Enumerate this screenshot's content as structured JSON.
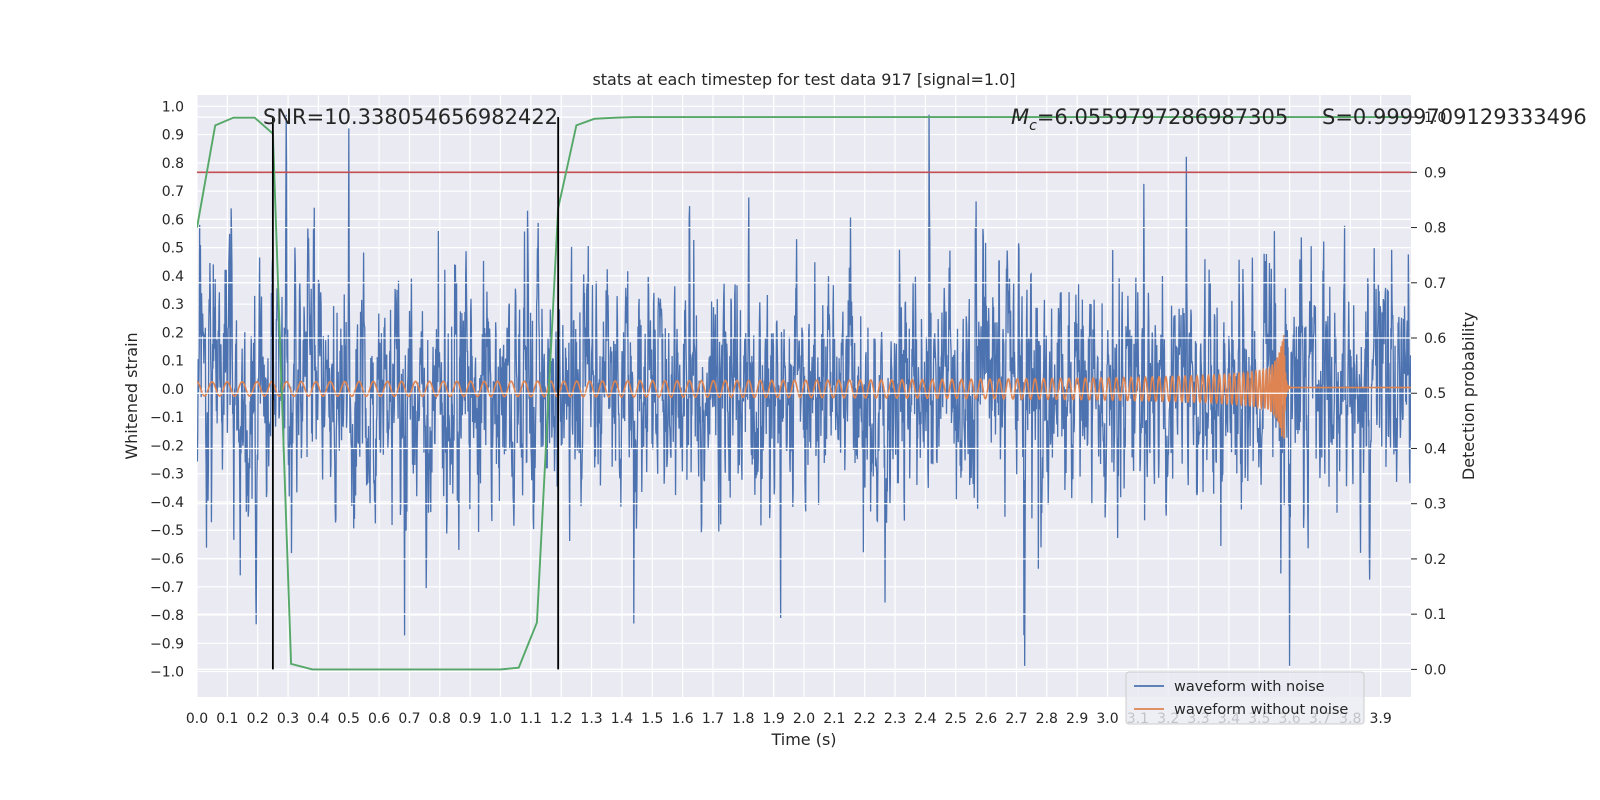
{
  "chart_data": {
    "type": "line",
    "title": "stats at each timestep for test data 917 [signal=1.0]",
    "xlabel": "Time (s)",
    "ylabel_left": "Whitened strain",
    "ylabel_right": "Detection probability",
    "xlim": [
      0.0,
      4.0
    ],
    "ylim_left": [
      -1.09,
      1.04
    ],
    "ylim_right": [
      -0.05,
      1.04
    ],
    "x_ticks": [
      "0.0",
      "0.1",
      "0.2",
      "0.3",
      "0.4",
      "0.5",
      "0.6",
      "0.7",
      "0.8",
      "0.9",
      "1.0",
      "1.1",
      "1.2",
      "1.3",
      "1.4",
      "1.5",
      "1.6",
      "1.7",
      "1.8",
      "1.9",
      "2.0",
      "2.1",
      "2.2",
      "2.3",
      "2.4",
      "2.5",
      "2.6",
      "2.7",
      "2.8",
      "2.9",
      "3.0",
      "3.1",
      "3.2",
      "3.3",
      "3.4",
      "3.5",
      "3.6",
      "3.7",
      "3.8",
      "3.9"
    ],
    "y_ticks_left": [
      "1.0",
      "0.9",
      "0.8",
      "0.7",
      "0.6",
      "0.5",
      "0.4",
      "0.3",
      "0.2",
      "0.1",
      "0.0",
      "−0.1",
      "−0.2",
      "−0.3",
      "−0.4",
      "−0.5",
      "−0.6",
      "−0.7",
      "−0.8",
      "−0.9",
      "−1.0"
    ],
    "y_ticks_right": [
      "1.0",
      "0.9",
      "0.8",
      "0.7",
      "0.6",
      "0.5",
      "0.4",
      "0.3",
      "0.2",
      "0.1",
      "0.0"
    ],
    "grid": true,
    "legend_placement": "lower-right",
    "annotations": {
      "snr": "SNR=10.338054656982422",
      "mc_symbol": "M",
      "mc_subscript": "c",
      "mc_value": "=6.0559797286987305",
      "s": "S=0.9999709129333496"
    },
    "threshold_probability": 0.9,
    "vertical_markers_x": [
      0.25,
      1.19
    ],
    "series": [
      {
        "name": "waveform with noise",
        "axis": "left",
        "color": "#4c72b0",
        "kind": "noise",
        "amplitude": 0.2,
        "peak_max": 0.97,
        "peak_min": -0.98,
        "approx_points": 4096
      },
      {
        "name": "waveform without noise",
        "axis": "left",
        "color": "#dd8452",
        "kind": "chirp",
        "initial_amplitude": 0.025,
        "merger_time": 3.58,
        "peak_amplitude": 0.28,
        "start_frequency_hz": 20,
        "post_merger_offset": 0.005
      },
      {
        "name": "detection probability",
        "axis": "right",
        "color": "#55a868",
        "x": [
          0.0,
          0.06,
          0.12,
          0.19,
          0.25,
          0.31,
          0.38,
          0.44,
          0.5,
          0.56,
          0.62,
          0.69,
          0.75,
          0.81,
          0.88,
          0.94,
          1.0,
          1.06,
          1.12,
          1.19,
          1.25,
          1.31,
          1.38,
          1.44,
          1.5,
          2.0,
          2.5,
          3.0,
          3.5,
          3.99
        ],
        "values": [
          0.8,
          0.985,
          0.999,
          0.999,
          0.97,
          0.01,
          0.0,
          0.0,
          0.0,
          0.0,
          0.0,
          0.0,
          0.0,
          0.0,
          0.0,
          0.0,
          0.0,
          0.003,
          0.085,
          0.835,
          0.985,
          0.997,
          0.999,
          1.0,
          1.0,
          1.0,
          1.0,
          1.0,
          1.0,
          1.0
        ]
      }
    ]
  }
}
